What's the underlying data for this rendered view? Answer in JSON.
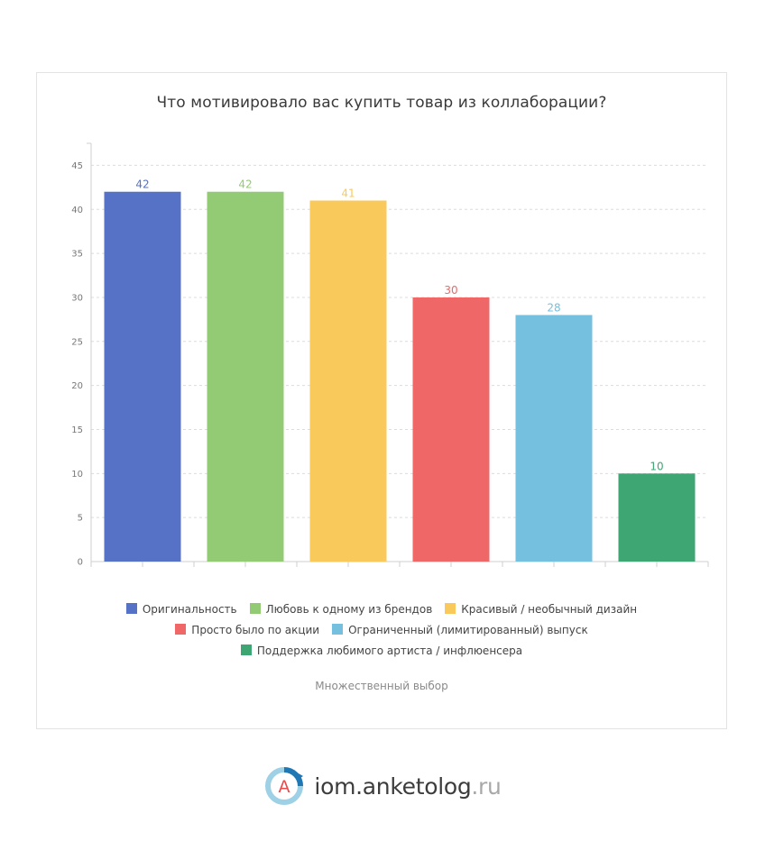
{
  "chart_data": {
    "type": "bar",
    "title": "Что мотивировало вас купить товар из коллаборации?",
    "categories": [
      "Оригинальность",
      "Любовь к одному из брендов",
      "Красивый / необычный дизайн",
      "Просто было по акции",
      "Ограниченный (лимитированный) выпуск",
      "Поддержка любимого артиста / инфлюенсера"
    ],
    "values": [
      42,
      42,
      41,
      30,
      28,
      10
    ],
    "colors": [
      "#5572c7",
      "#93cb74",
      "#f9c95c",
      "#ef6767",
      "#76c0df",
      "#3da673"
    ],
    "ylim": [
      0,
      47.5
    ],
    "yticks": [
      0,
      5,
      10,
      15,
      20,
      25,
      30,
      35,
      40,
      45
    ],
    "grid": true,
    "legend_position": "bottom",
    "footnote": "Множественный выбор"
  },
  "legend_rows": [
    [
      0,
      1,
      2
    ],
    [
      3,
      4
    ],
    [
      5
    ]
  ],
  "brand": {
    "name": "iom.anketolog",
    "tld": ".ru",
    "logo_letter": "A"
  }
}
